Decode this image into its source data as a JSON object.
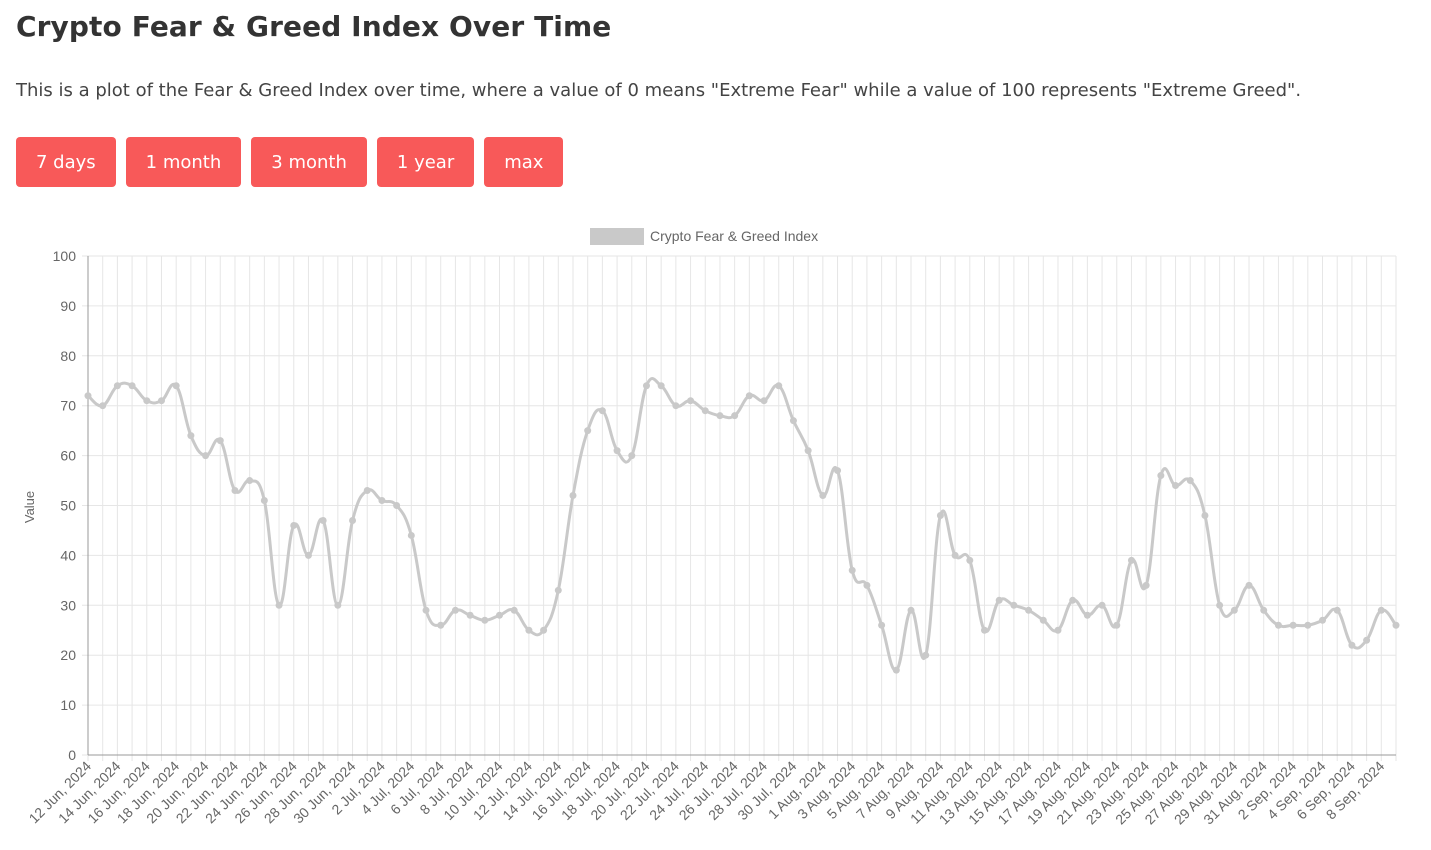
{
  "header": {
    "title": "Crypto Fear & Greed Index Over Time",
    "description": "This is a plot of the Fear & Greed Index over time, where a value of 0 means \"Extreme Fear\" while a value of 100 represents \"Extreme Greed\"."
  },
  "range_buttons": [
    "7 days",
    "1 month",
    "3 month",
    "1 year",
    "max"
  ],
  "colors": {
    "button_bg": "#f85959",
    "series": "#c9c9c9",
    "grid": "#e6e6e6"
  },
  "chart_data": {
    "type": "line",
    "title": "",
    "legend": {
      "label": "Crypto Fear & Greed Index",
      "position": "top"
    },
    "ylabel": "Value",
    "xlabel": "",
    "ylim": [
      0,
      100
    ],
    "yticks": [
      0,
      10,
      20,
      30,
      40,
      50,
      60,
      70,
      80,
      90,
      100
    ],
    "grid": true,
    "x_tick_labels": [
      "12 Jun, 2024",
      "14 Jun, 2024",
      "16 Jun, 2024",
      "18 Jun, 2024",
      "20 Jun, 2024",
      "22 Jun, 2024",
      "24 Jun, 2024",
      "26 Jun, 2024",
      "28 Jun, 2024",
      "30 Jun, 2024",
      "2 Jul, 2024",
      "4 Jul, 2024",
      "6 Jul, 2024",
      "8 Jul, 2024",
      "10 Jul, 2024",
      "12 Jul, 2024",
      "14 Jul, 2024",
      "16 Jul, 2024",
      "18 Jul, 2024",
      "20 Jul, 2024",
      "22 Jul, 2024",
      "24 Jul, 2024",
      "26 Jul, 2024",
      "28 Jul, 2024",
      "30 Jul, 2024",
      "1 Aug, 2024",
      "3 Aug, 2024",
      "5 Aug, 2024",
      "7 Aug, 2024",
      "9 Aug, 2024",
      "11 Aug, 2024",
      "13 Aug, 2024",
      "15 Aug, 2024",
      "17 Aug, 2024",
      "19 Aug, 2024",
      "21 Aug, 2024",
      "23 Aug, 2024",
      "25 Aug, 2024",
      "27 Aug, 2024",
      "29 Aug, 2024",
      "31 Aug, 2024",
      "2 Sep, 2024",
      "4 Sep, 2024",
      "6 Sep, 2024",
      "8 Sep, 2024"
    ],
    "series": [
      {
        "name": "Crypto Fear & Greed Index",
        "start_date": "12 Jun, 2024",
        "values": [
          72,
          70,
          74,
          74,
          71,
          71,
          74,
          64,
          60,
          63,
          53,
          55,
          51,
          30,
          46,
          40,
          47,
          30,
          47,
          53,
          51,
          50,
          44,
          29,
          26,
          29,
          28,
          27,
          28,
          29,
          25,
          25,
          33,
          52,
          65,
          69,
          61,
          60,
          74,
          74,
          70,
          71,
          69,
          68,
          68,
          72,
          71,
          74,
          67,
          61,
          52,
          57,
          37,
          34,
          26,
          17,
          29,
          20,
          48,
          40,
          39,
          25,
          31,
          30,
          29,
          27,
          25,
          31,
          28,
          30,
          26,
          39,
          34,
          56,
          54,
          55,
          48,
          30,
          29,
          34,
          29,
          26,
          26,
          26,
          27,
          29,
          22,
          23,
          29,
          26
        ]
      }
    ]
  }
}
